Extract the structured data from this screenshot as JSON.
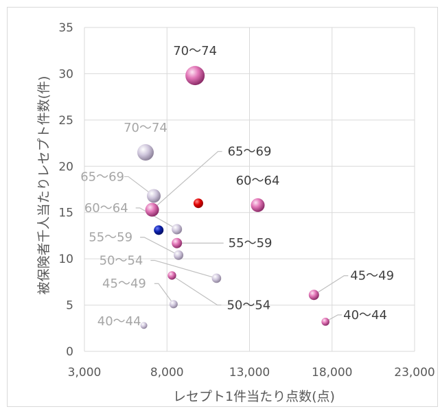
{
  "chart_data": {
    "type": "scatter",
    "subtype": "bubble",
    "title": "",
    "xlabel": "レセプト1件当たり点数(点)",
    "ylabel": "被保険者千人当たりレセプト件数(件)",
    "xlim": [
      3000,
      23000
    ],
    "ylim": [
      0,
      35
    ],
    "xticks": [
      3000,
      8000,
      13000,
      18000,
      23000
    ],
    "xtick_labels": [
      "3,000",
      "8,000",
      "13,000",
      "18,000",
      "23,000"
    ],
    "yticks": [
      0,
      5,
      10,
      15,
      20,
      25,
      30,
      35
    ],
    "grid": true,
    "colors": {
      "pink_series": "#e377b8",
      "lavender_series": "#c9bfd6",
      "red_point": "#e00000",
      "blue_point": "#0a1fa8",
      "pink_label": "#3f3f3f",
      "lavender_label": "#a6a6a6",
      "leader_line": "#bfbfbf"
    },
    "series": [
      {
        "style": "pink",
        "points": [
          {
            "label": "70〜74",
            "x": 9700,
            "y": 29.8,
            "size": 10
          },
          {
            "label": "65〜69",
            "x": 7100,
            "y": 15.3,
            "size": 6
          },
          {
            "label": "60〜64",
            "x": 13500,
            "y": 15.8,
            "size": 6
          },
          {
            "label": "55〜59",
            "x": 8600,
            "y": 11.7,
            "size": 3.5
          },
          {
            "label": "50〜54",
            "x": 8300,
            "y": 8.2,
            "size": 2.2
          },
          {
            "label": "45〜49",
            "x": 16900,
            "y": 6.1,
            "size": 3.5
          },
          {
            "label": "40〜44",
            "x": 17600,
            "y": 3.2,
            "size": 1.8
          }
        ]
      },
      {
        "style": "lavender",
        "points": [
          {
            "label": "70〜74",
            "x": 6700,
            "y": 21.5,
            "size": 8
          },
          {
            "label": "65〜69",
            "x": 7200,
            "y": 16.8,
            "size": 6
          },
          {
            "label": "60〜64",
            "x": 8600,
            "y": 13.2,
            "size": 3.5
          },
          {
            "label": "55〜59",
            "x": 8700,
            "y": 10.4,
            "size": 3
          },
          {
            "label": "50〜54",
            "x": 11000,
            "y": 7.9,
            "size": 2.8
          },
          {
            "label": "45〜49",
            "x": 8400,
            "y": 5.1,
            "size": 2
          },
          {
            "label": "40〜44",
            "x": 6600,
            "y": 2.8,
            "size": 1
          }
        ]
      },
      {
        "style": "red",
        "points": [
          {
            "x": 9900,
            "y": 16.0,
            "size": 3
          }
        ]
      },
      {
        "style": "blue",
        "points": [
          {
            "x": 7500,
            "y": 13.1,
            "size": 3
          }
        ]
      }
    ]
  }
}
